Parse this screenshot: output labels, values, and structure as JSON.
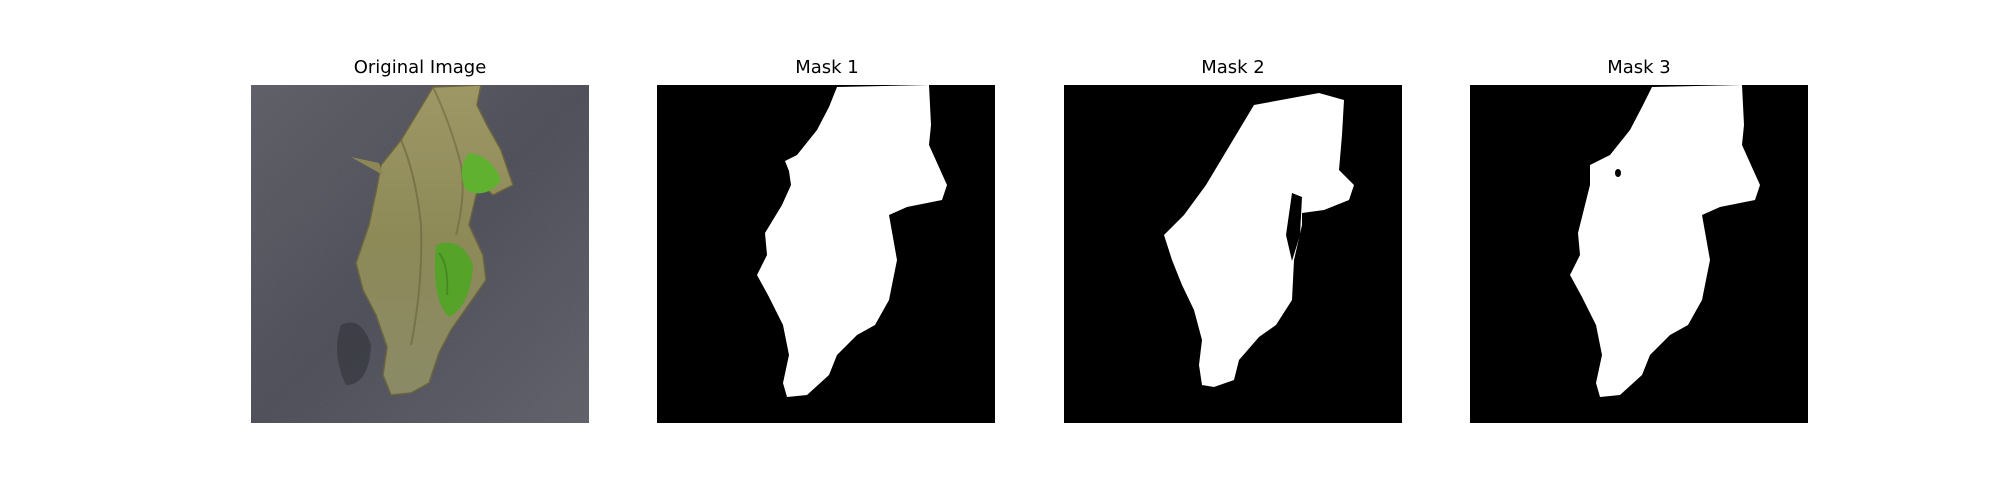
{
  "panels": [
    {
      "title": "Original Image"
    },
    {
      "title": "Mask 1"
    },
    {
      "title": "Mask 2"
    },
    {
      "title": "Mask 3"
    }
  ],
  "colors": {
    "background": "#ffffff",
    "mask_background": "#000000",
    "mask_foreground": "#ffffff",
    "surface": "#4b4c56",
    "leaf_dry": "#8f8a5a",
    "leaf_green": "#5aa82c"
  }
}
